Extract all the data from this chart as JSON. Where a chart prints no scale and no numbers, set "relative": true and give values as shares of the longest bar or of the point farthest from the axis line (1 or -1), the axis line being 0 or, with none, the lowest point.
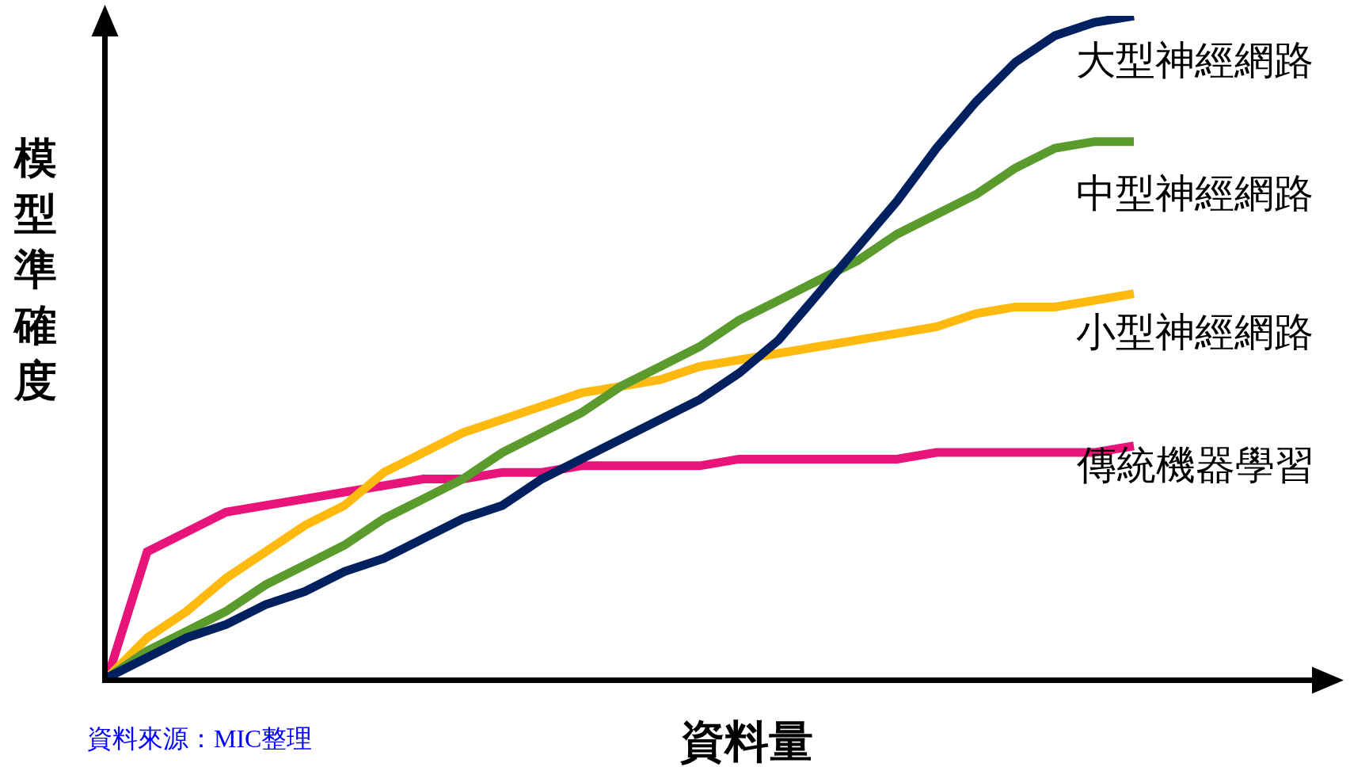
{
  "chart_data": {
    "type": "line",
    "relative": true,
    "xlabel": "資料量",
    "ylabel": "模型準確度",
    "legend": false,
    "grid": false,
    "tick_labels": false,
    "marker": "none",
    "line_style": "solid",
    "categories": [
      null,
      null,
      null,
      null,
      null,
      null,
      null,
      null,
      null,
      null,
      null,
      null,
      null,
      null,
      null,
      null,
      null,
      null,
      null,
      null,
      null,
      null,
      null,
      null,
      null,
      null,
      null
    ],
    "series": [
      {
        "name": "大型神經網路",
        "color": "#002060",
        "values": [
          0,
          0.03,
          0.06,
          0.08,
          0.11,
          0.13,
          0.16,
          0.18,
          0.21,
          0.24,
          0.26,
          0.3,
          0.33,
          0.36,
          0.39,
          0.42,
          0.46,
          0.51,
          0.58,
          0.65,
          0.72,
          0.8,
          0.87,
          0.93,
          0.97,
          0.99,
          1
        ]
      },
      {
        "name": "中型神經網路",
        "color": "#5b9a2d",
        "values": [
          0,
          0.04,
          0.07,
          0.1,
          0.14,
          0.17,
          0.2,
          0.24,
          0.27,
          0.3,
          0.34,
          0.37,
          0.4,
          0.44,
          0.47,
          0.5,
          0.54,
          0.57,
          0.6,
          0.63,
          0.67,
          0.7,
          0.73,
          0.77,
          0.8,
          0.81,
          0.81
        ]
      },
      {
        "name": "小型神經網路",
        "color": "#ffb90f",
        "values": [
          0,
          0.06,
          0.1,
          0.15,
          0.19,
          0.23,
          0.26,
          0.31,
          0.34,
          0.37,
          0.39,
          0.41,
          0.43,
          0.44,
          0.45,
          0.47,
          0.48,
          0.49,
          0.5,
          0.51,
          0.52,
          0.53,
          0.55,
          0.56,
          0.56,
          0.57,
          0.58
        ]
      },
      {
        "name": "傳統機器學習",
        "color": "#e8147a",
        "values": [
          0,
          0.19,
          0.22,
          0.25,
          0.26,
          0.27,
          0.28,
          0.29,
          0.3,
          0.3,
          0.31,
          0.31,
          0.32,
          0.32,
          0.32,
          0.32,
          0.33,
          0.33,
          0.33,
          0.33,
          0.33,
          0.34,
          0.34,
          0.34,
          0.34,
          0.34,
          0.35
        ]
      }
    ],
    "annotations": [
      "資料來源：MIC整理"
    ]
  }
}
